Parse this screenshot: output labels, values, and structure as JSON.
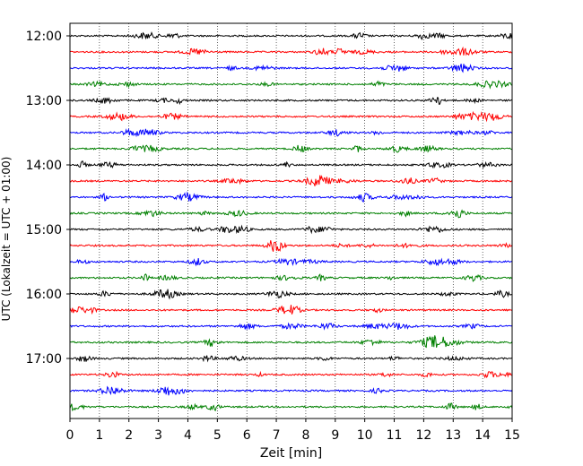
{
  "chart_data": {
    "type": "line",
    "title": "",
    "xlabel": "Zeit  [min]",
    "ylabel": "UTC (Lokalzeit = UTC + 01:00)",
    "xlim": [
      0,
      15
    ],
    "x_ticks": [
      "0",
      "1",
      "2",
      "3",
      "4",
      "5",
      "6",
      "7",
      "8",
      "9",
      "10",
      "11",
      "12",
      "13",
      "14",
      "15"
    ],
    "y_ticks": [
      "12:00",
      "13:00",
      "14:00",
      "15:00",
      "16:00",
      "17:00"
    ],
    "grid": "vertical dotted",
    "trace_interval_min": 15,
    "trace_colors": [
      "#000000",
      "#ff0000",
      "#0000ff",
      "#008000"
    ],
    "traces": [
      {
        "start": "12:00",
        "color": "#000000"
      },
      {
        "start": "12:15",
        "color": "#ff0000"
      },
      {
        "start": "12:30",
        "color": "#0000ff"
      },
      {
        "start": "12:45",
        "color": "#008000"
      },
      {
        "start": "13:00",
        "color": "#000000"
      },
      {
        "start": "13:15",
        "color": "#ff0000"
      },
      {
        "start": "13:30",
        "color": "#0000ff"
      },
      {
        "start": "13:45",
        "color": "#008000"
      },
      {
        "start": "14:00",
        "color": "#000000"
      },
      {
        "start": "14:15",
        "color": "#ff0000"
      },
      {
        "start": "14:30",
        "color": "#0000ff"
      },
      {
        "start": "14:45",
        "color": "#008000"
      },
      {
        "start": "15:00",
        "color": "#000000"
      },
      {
        "start": "15:15",
        "color": "#ff0000"
      },
      {
        "start": "15:30",
        "color": "#0000ff"
      },
      {
        "start": "15:45",
        "color": "#008000"
      },
      {
        "start": "16:00",
        "color": "#000000"
      },
      {
        "start": "16:15",
        "color": "#ff0000"
      },
      {
        "start": "16:30",
        "color": "#0000ff"
      },
      {
        "start": "16:45",
        "color": "#008000"
      },
      {
        "start": "17:00",
        "color": "#000000"
      },
      {
        "start": "17:15",
        "color": "#ff0000"
      },
      {
        "start": "17:30",
        "color": "#0000ff"
      },
      {
        "start": "17:45",
        "color": "#008000"
      }
    ]
  }
}
